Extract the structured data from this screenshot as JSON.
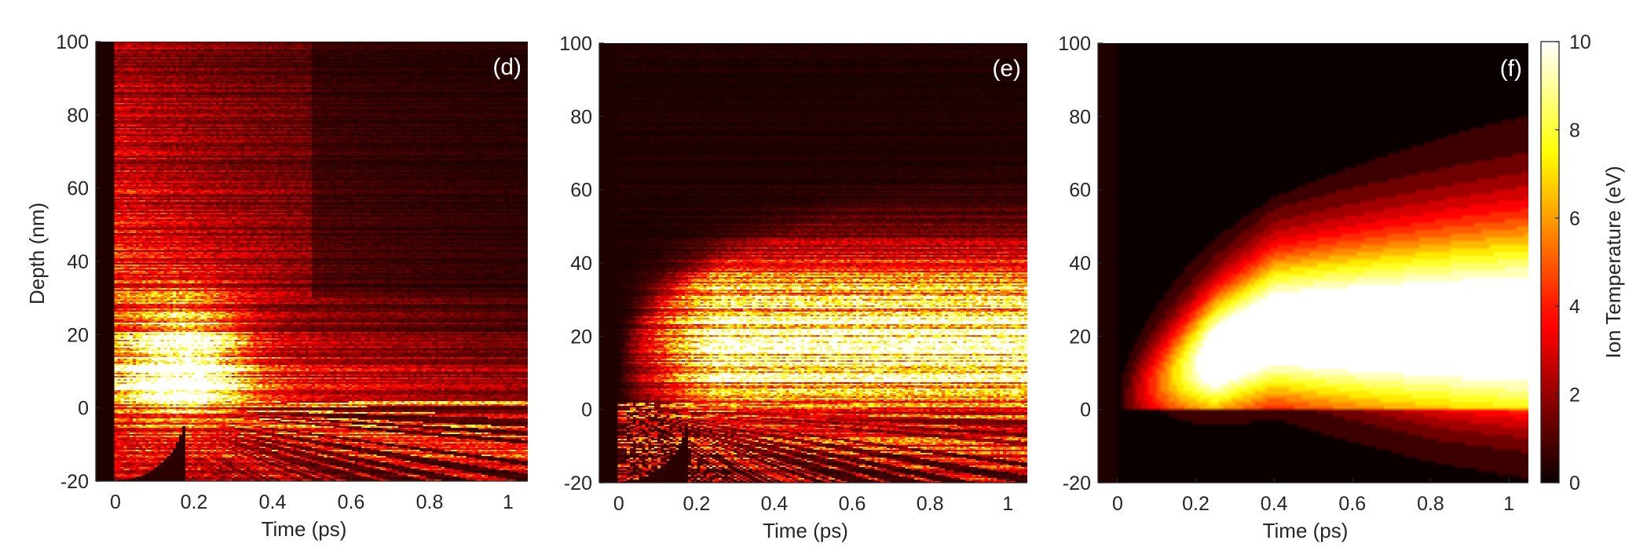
{
  "chart_data": {
    "type": "heatmap",
    "colormap": "hot",
    "colormap_stops": [
      "#000000",
      "#800000",
      "#ff0000",
      "#ff8000",
      "#ffff00",
      "#ffffff"
    ],
    "x": {
      "label": "Time (ps)",
      "lim": [
        -0.05,
        1.05
      ],
      "ticks": [
        0,
        0.2,
        0.4,
        0.6,
        0.8,
        1
      ],
      "tick_labels": [
        "0",
        "0.2",
        "0.4",
        "0.6",
        "0.8",
        "1"
      ]
    },
    "y": {
      "label": "Depth (nm)",
      "lim": [
        -20,
        100
      ],
      "ticks": [
        -20,
        0,
        20,
        40,
        60,
        80,
        100
      ],
      "tick_labels": [
        "-20",
        "0",
        "20",
        "40",
        "60",
        "80",
        "100"
      ]
    },
    "colorbar": {
      "label": "Ion Temperature (eV)",
      "lim": [
        0,
        10
      ],
      "ticks": [
        0,
        2,
        4,
        6,
        8,
        10
      ],
      "tick_labels": [
        "0",
        "2",
        "4",
        "6",
        "8",
        "10"
      ]
    },
    "panels": [
      {
        "id": "d",
        "label": "(d)",
        "show_ylabel": true,
        "kind": "noisy-surface"
      },
      {
        "id": "e",
        "label": "(e)",
        "show_ylabel": false,
        "kind": "noisy-spread"
      },
      {
        "id": "f",
        "label": "(f)",
        "show_ylabel": false,
        "kind": "smooth-model"
      }
    ]
  }
}
